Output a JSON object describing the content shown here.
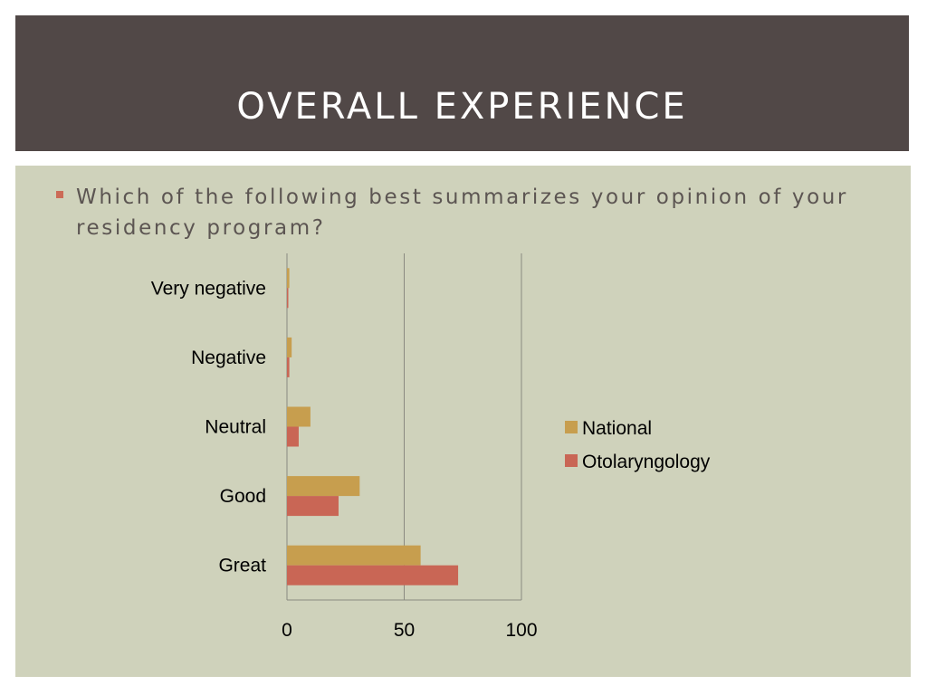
{
  "slide": {
    "title": "OVERALL EXPERIENCE",
    "question": "Which of the following best summarizes your opinion of your residency program?"
  },
  "colors": {
    "title_bg": "#514847",
    "content_bg": "#cfd2bb",
    "bullet": "#cc6b57"
  },
  "chart_data": {
    "type": "bar",
    "orientation": "horizontal",
    "categories": [
      "Very negative",
      "Negative",
      "Neutral",
      "Good",
      "Great"
    ],
    "series": [
      {
        "name": "National",
        "color": "#c79e4e",
        "values": [
          1,
          2,
          10,
          31,
          57
        ]
      },
      {
        "name": "Otolaryngology",
        "color": "#c96655",
        "values": [
          0.5,
          1,
          5,
          22,
          73
        ]
      }
    ],
    "xlim": [
      0,
      100
    ],
    "xticks": [
      "0",
      "50",
      "100"
    ],
    "grid": true,
    "legend_position": "right"
  }
}
